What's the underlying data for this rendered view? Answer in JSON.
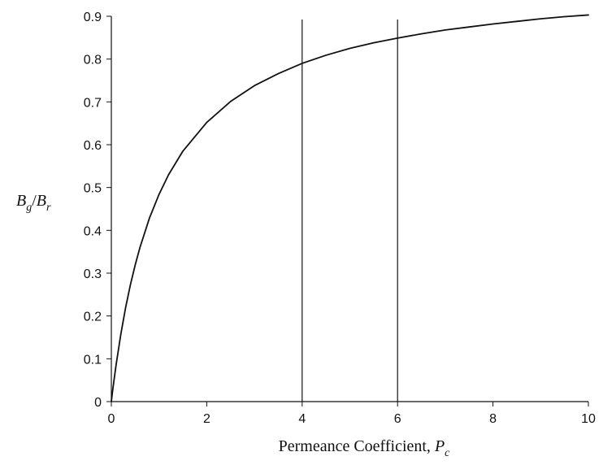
{
  "chart_data": {
    "type": "line",
    "title": "",
    "xlabel": {
      "text": "Permeance Coefficient, ",
      "symbol": "P",
      "subscript": "c"
    },
    "ylabel": {
      "numerator_symbol": "B",
      "numerator_subscript": "g",
      "separator": "/",
      "denominator_symbol": "B",
      "denominator_subscript": "r"
    },
    "xlim": [
      0,
      10
    ],
    "ylim": [
      0,
      0.9
    ],
    "xticks": [
      0,
      2,
      4,
      6,
      8,
      10
    ],
    "xtick_labels": [
      "0",
      "2",
      "4",
      "6",
      "8",
      "10"
    ],
    "yticks": [
      0,
      0.1,
      0.2,
      0.3,
      0.4,
      0.5,
      0.6,
      0.7,
      0.8,
      0.9
    ],
    "ytick_labels": [
      "0",
      "0.1",
      "0.2",
      "0.3",
      "0.4",
      "0.5",
      "0.6",
      "0.7",
      "0.8",
      "0.9"
    ],
    "grid": false,
    "legend": "none",
    "vertical_lines": [
      4,
      6
    ],
    "series": [
      {
        "x": [
          0,
          0.02,
          0.05,
          0.1,
          0.2,
          0.3,
          0.4,
          0.5,
          0.6,
          0.8,
          1.0,
          1.2,
          1.5,
          2.0,
          2.5,
          3.0,
          3.5,
          4.0,
          4.5,
          5.0,
          5.5,
          6.0,
          6.5,
          7.0,
          7.5,
          8.0,
          8.5,
          9.0,
          9.5,
          10.0
        ],
        "y": [
          0,
          0.019,
          0.045,
          0.086,
          0.158,
          0.22,
          0.273,
          0.319,
          0.36,
          0.429,
          0.484,
          0.53,
          0.585,
          0.652,
          0.701,
          0.738,
          0.766,
          0.79,
          0.809,
          0.825,
          0.838,
          0.849,
          0.859,
          0.868,
          0.875,
          0.882,
          0.888,
          0.894,
          0.899,
          0.903
        ],
        "color": "#111111"
      }
    ],
    "colors": {
      "axis": "#111111",
      "line": "#111111",
      "background": "#ffffff"
    }
  }
}
